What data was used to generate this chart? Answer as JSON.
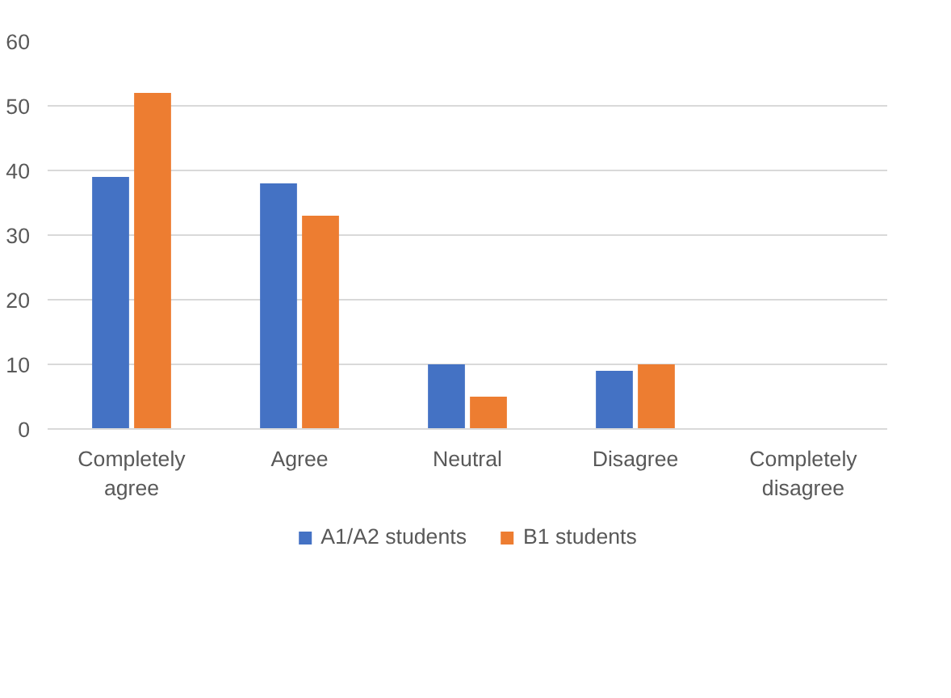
{
  "chart_data": {
    "type": "bar",
    "categories": [
      "Completely agree",
      "Agree",
      "Neutral",
      "Disagree",
      "Completely disagree"
    ],
    "series": [
      {
        "name": "A1/A2 students",
        "color": "#4472c4",
        "values": [
          39,
          38,
          10,
          9,
          0
        ]
      },
      {
        "name": "B1 students",
        "color": "#ed7d31",
        "values": [
          52,
          33,
          5,
          10,
          0
        ]
      }
    ],
    "ylim": [
      0,
      60
    ],
    "yticks": [
      0,
      10,
      20,
      30,
      40,
      50,
      60
    ],
    "grid": "y",
    "legend": "bottom"
  }
}
